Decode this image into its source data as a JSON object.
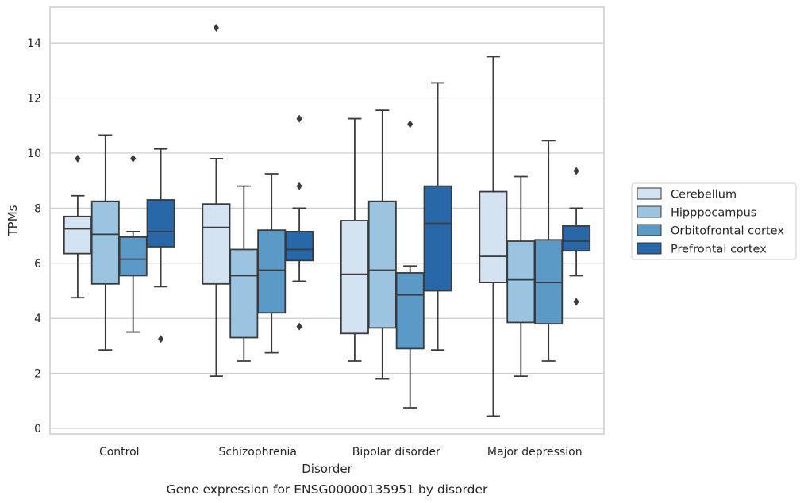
{
  "caption": "Gene expression for ENSG00000135951 by disorder",
  "chart_data": {
    "type": "box",
    "xlabel": "Disorder",
    "ylabel": "TPMs",
    "ylim": [
      -0.2,
      15.3
    ],
    "yticks": [
      0,
      2,
      4,
      6,
      8,
      10,
      12,
      14
    ],
    "grid": true,
    "legend_placement": "right",
    "categories": [
      "Control",
      "Schizophrenia",
      "Bipolar disorder",
      "Major depression"
    ],
    "series": [
      {
        "name": "Cerebellum",
        "color": "#d3e3f2",
        "boxes": [
          {
            "whislo": 4.75,
            "q1": 6.35,
            "med": 7.25,
            "q3": 7.7,
            "whishi": 8.45,
            "fliers": [
              9.8
            ]
          },
          {
            "whislo": 1.9,
            "q1": 5.25,
            "med": 7.3,
            "q3": 8.15,
            "whishi": 9.8,
            "fliers": [
              14.55
            ]
          },
          {
            "whislo": 2.45,
            "q1": 3.45,
            "med": 5.6,
            "q3": 7.55,
            "whishi": 11.25,
            "fliers": []
          },
          {
            "whislo": 0.45,
            "q1": 5.3,
            "med": 6.25,
            "q3": 8.6,
            "whishi": 13.5,
            "fliers": []
          }
        ]
      },
      {
        "name": "Hipppocampus",
        "color": "#9ac4e0",
        "boxes": [
          {
            "whislo": 2.85,
            "q1": 5.25,
            "med": 7.05,
            "q3": 8.25,
            "whishi": 10.65,
            "fliers": []
          },
          {
            "whislo": 2.45,
            "q1": 3.3,
            "med": 5.55,
            "q3": 6.5,
            "whishi": 8.8,
            "fliers": []
          },
          {
            "whislo": 1.8,
            "q1": 3.65,
            "med": 5.75,
            "q3": 8.25,
            "whishi": 11.55,
            "fliers": []
          },
          {
            "whislo": 1.9,
            "q1": 3.85,
            "med": 5.4,
            "q3": 6.8,
            "whishi": 9.15,
            "fliers": []
          }
        ]
      },
      {
        "name": "Orbitofrontal cortex",
        "color": "#5b9ac7",
        "boxes": [
          {
            "whislo": 3.5,
            "q1": 5.55,
            "med": 6.15,
            "q3": 6.95,
            "whishi": 7.15,
            "fliers": [
              9.8
            ]
          },
          {
            "whislo": 2.75,
            "q1": 4.2,
            "med": 5.75,
            "q3": 7.2,
            "whishi": 9.25,
            "fliers": []
          },
          {
            "whislo": 0.75,
            "q1": 2.9,
            "med": 4.85,
            "q3": 5.65,
            "whishi": 5.9,
            "fliers": [
              11.05
            ]
          },
          {
            "whislo": 2.45,
            "q1": 3.8,
            "med": 5.3,
            "q3": 6.85,
            "whishi": 10.45,
            "fliers": []
          }
        ]
      },
      {
        "name": "Prefrontal cortex",
        "color": "#2868a9",
        "boxes": [
          {
            "whislo": 5.15,
            "q1": 6.6,
            "med": 7.15,
            "q3": 8.3,
            "whishi": 10.15,
            "fliers": [
              3.25
            ]
          },
          {
            "whislo": 5.35,
            "q1": 6.1,
            "med": 6.5,
            "q3": 7.15,
            "whishi": 8.0,
            "fliers": [
              11.25,
              8.8,
              3.7
            ]
          },
          {
            "whislo": 2.85,
            "q1": 5.0,
            "med": 7.45,
            "q3": 8.8,
            "whishi": 12.55,
            "fliers": []
          },
          {
            "whislo": 5.55,
            "q1": 6.45,
            "med": 6.8,
            "q3": 7.35,
            "whishi": 8.0,
            "fliers": [
              9.35,
              4.6
            ]
          }
        ]
      }
    ]
  }
}
